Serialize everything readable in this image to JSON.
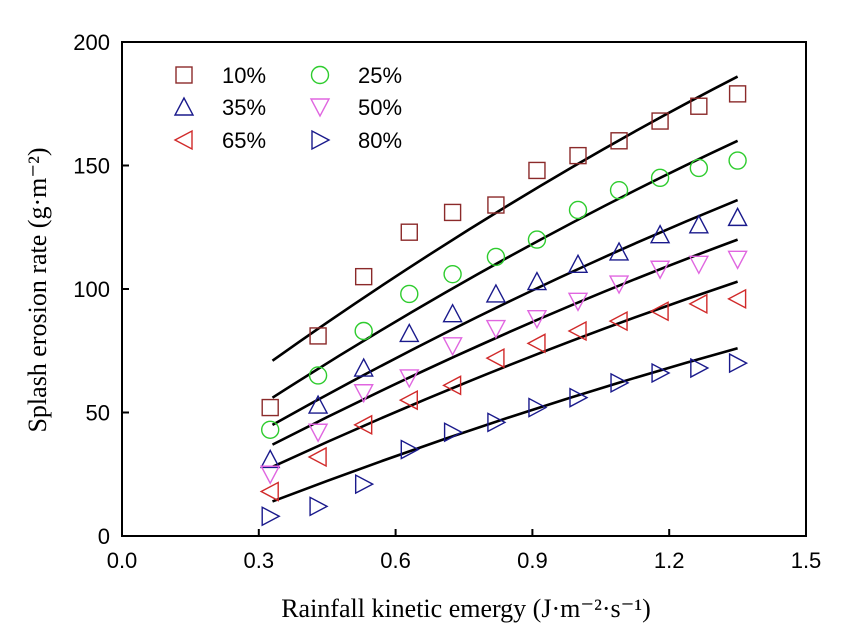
{
  "chart_data": {
    "type": "scatter",
    "xlabel": "Rainfall kinetic emergy (J·m⁻²·s⁻¹)",
    "ylabel": "Splash erosion rate (g·m⁻²)",
    "xlim": [
      0.0,
      1.5
    ],
    "ylim": [
      0,
      200
    ],
    "xticks": [
      "0.0",
      "0.3",
      "0.6",
      "0.9",
      "1.2",
      "1.5"
    ],
    "yticks": [
      "0",
      "50",
      "100",
      "150",
      "200"
    ],
    "grid": false,
    "legend_position": "top-left",
    "x": [
      0.325,
      0.43,
      0.53,
      0.63,
      0.725,
      0.82,
      0.91,
      1.0,
      1.09,
      1.18,
      1.265,
      1.35
    ],
    "series": [
      {
        "name": "10%",
        "marker": "square",
        "color": "#8b2a2a",
        "values": [
          52,
          81,
          105,
          123,
          131,
          134,
          148,
          154,
          160,
          168,
          174,
          179
        ],
        "fit": [
          [
            0.33,
            71
          ],
          [
            1.35,
            186
          ]
        ]
      },
      {
        "name": "25%",
        "marker": "circle",
        "color": "#2ecc2e",
        "values": [
          43,
          65,
          83,
          98,
          106,
          113,
          120,
          132,
          140,
          145,
          149,
          152
        ],
        "fit": [
          [
            0.33,
            56
          ],
          [
            1.35,
            160
          ]
        ]
      },
      {
        "name": "35%",
        "marker": "triangle-up",
        "color": "#1a1a8c",
        "values": [
          31,
          53,
          68,
          82,
          90,
          98,
          103,
          110,
          115,
          122,
          126,
          129
        ],
        "fit": [
          [
            0.33,
            45
          ],
          [
            1.35,
            136
          ]
        ]
      },
      {
        "name": "50%",
        "marker": "triangle-down",
        "color": "#e066e0",
        "values": [
          25,
          42,
          58,
          64,
          77,
          84,
          88,
          95,
          102,
          108,
          110,
          112
        ],
        "fit": [
          [
            0.33,
            37
          ],
          [
            1.35,
            120
          ]
        ]
      },
      {
        "name": "65%",
        "marker": "triangle-left",
        "color": "#d12a2a",
        "values": [
          18,
          32,
          45,
          55,
          61,
          72,
          78,
          83,
          87,
          91,
          94,
          96
        ],
        "fit": [
          [
            0.33,
            28
          ],
          [
            1.35,
            103
          ]
        ]
      },
      {
        "name": "80%",
        "marker": "triangle-right",
        "color": "#1a1a8c",
        "values": [
          8,
          12,
          21,
          35,
          42,
          46,
          52,
          56,
          62,
          66,
          68,
          70
        ],
        "fit": [
          [
            0.33,
            14
          ],
          [
            1.35,
            76
          ]
        ]
      }
    ]
  }
}
